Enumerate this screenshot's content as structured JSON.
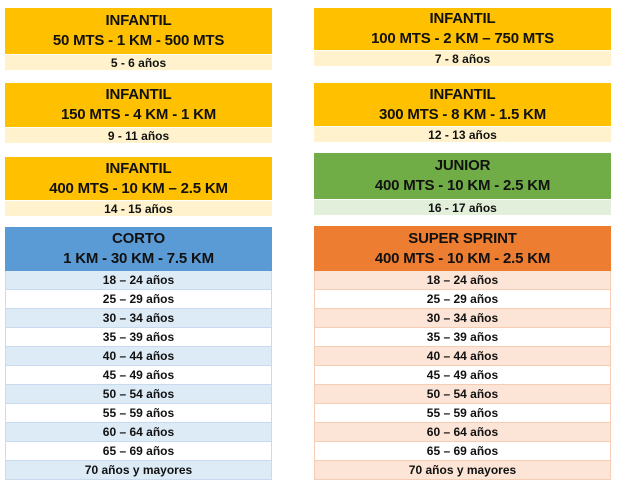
{
  "blocks": [
    {
      "title": "INFANTIL",
      "distance": "50 MTS - 1 KM - 500 MTS",
      "ages": [
        "5 - 6 años"
      ]
    },
    {
      "title": "INFANTIL",
      "distance": "100 MTS - 2 KM – 750 MTS",
      "ages": [
        "7 - 8 años"
      ]
    },
    {
      "title": "INFANTIL",
      "distance": "150 MTS - 4 KM - 1 KM",
      "ages": [
        "9 - 11 años"
      ]
    },
    {
      "title": "INFANTIL",
      "distance": "300 MTS - 8 KM - 1.5 KM",
      "ages": [
        "12 - 13 años"
      ]
    },
    {
      "title": "INFANTIL",
      "distance": "400 MTS - 10 KM – 2.5 KM",
      "ages": [
        "14 - 15 años"
      ]
    },
    {
      "title": "JUNIOR",
      "distance": "400 MTS - 10 KM - 2.5 KM",
      "ages": [
        "16 - 17 años"
      ]
    },
    {
      "title": "CORTO",
      "distance": "1 KM - 30 KM - 7.5 KM",
      "ages": [
        "18 – 24 años",
        "25 – 29 años",
        "30 – 34 años",
        "35 – 39 años",
        "40 – 44 años",
        "45 – 49 años",
        "50 – 54 años",
        "55 – 59 años",
        "60 – 64 años",
        "65 – 69 años",
        "70 años y mayores"
      ]
    },
    {
      "title": "SUPER SPRINT",
      "distance": "400 MTS - 10 KM - 2.5 KM",
      "ages": [
        "18 – 24 años",
        "25 – 29 años",
        "30 – 34 años",
        "35 – 39 años",
        "40 – 44 años",
        "45 – 49 años",
        "50 – 54 años",
        "55 – 59 años",
        "60 – 64 años",
        "65 – 69 años",
        "70 años y mayores"
      ]
    }
  ]
}
